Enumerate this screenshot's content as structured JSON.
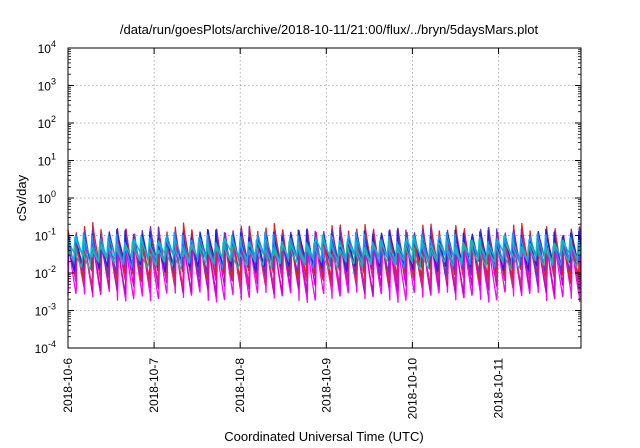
{
  "chart_data": {
    "type": "line",
    "title": "/data/run/goesPlots/archive/2018-10-11/21:00/flux/../bryn/5daysMars.plot",
    "xlabel": "Coordinated Universal Time (UTC)",
    "ylabel": "cSv/day",
    "yscale": "log",
    "ylim": [
      0.0001,
      10000
    ],
    "xlim": [
      "2018-10-06T00:00",
      "2018-10-11T23:00"
    ],
    "grid": true,
    "legend": "none",
    "x_ticks": [
      "2018-10-6",
      "2018-10-7",
      "2018-10-8",
      "2018-10-9",
      "2018-10-10",
      "2018-10-11"
    ],
    "y_ticks": [
      {
        "base": "10",
        "exp": "-4",
        "value": 0.0001
      },
      {
        "base": "10",
        "exp": "-3",
        "value": 0.001
      },
      {
        "base": "10",
        "exp": "-2",
        "value": 0.01
      },
      {
        "base": "10",
        "exp": "-1",
        "value": 0.1
      },
      {
        "base": "10",
        "exp": "0",
        "value": 1
      },
      {
        "base": "10",
        "exp": "1",
        "value": 10
      },
      {
        "base": "10",
        "exp": "2",
        "value": 100
      },
      {
        "base": "10",
        "exp": "3",
        "value": 1000
      },
      {
        "base": "10",
        "exp": "4",
        "value": 10000
      }
    ],
    "cycle_hours": 2.3,
    "series": [
      {
        "color": "#ff00ff",
        "peak": 0.06,
        "trough": 0.0025
      },
      {
        "color": "#cc00cc",
        "peak": 0.08,
        "trough": 0.004
      },
      {
        "color": "#e0208a",
        "peak": 0.1,
        "trough": 0.006
      },
      {
        "color": "#dd2222",
        "peak": 0.14,
        "trough": 0.009
      },
      {
        "color": "#6633cc",
        "peak": 0.12,
        "trough": 0.012
      },
      {
        "color": "#2222dd",
        "peak": 0.11,
        "trough": 0.016
      },
      {
        "color": "#1e90ff",
        "peak": 0.09,
        "trough": 0.02
      },
      {
        "color": "#00bcd4",
        "peak": 0.07,
        "trough": 0.025
      },
      {
        "color": "#20b2aa",
        "peak": 0.05,
        "trough": 0.018
      }
    ]
  }
}
